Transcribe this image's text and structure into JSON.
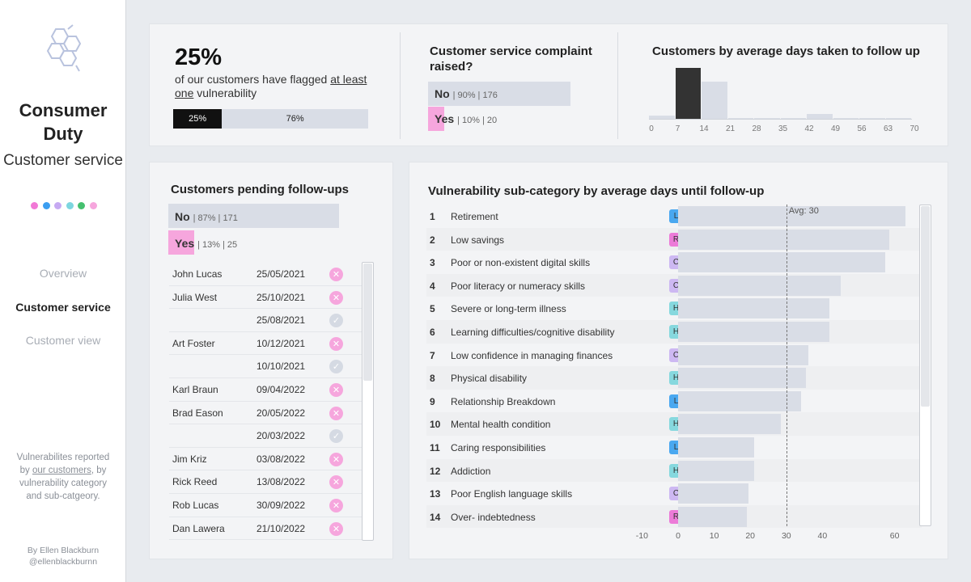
{
  "sidebar": {
    "title": "Consumer Duty",
    "subtitle": "Customer service",
    "dot_colors": [
      "#f179d6",
      "#3b9ef0",
      "#c6a9f2",
      "#7dd6df",
      "#45c06f",
      "#f6a6dd"
    ],
    "nav": [
      {
        "label": "Overview",
        "active": false
      },
      {
        "label": "Customer service",
        "active": true
      },
      {
        "label": "Customer view",
        "active": false
      }
    ],
    "description_pre": "Vulnerabilites reported by ",
    "description_link": "our customers",
    "description_post": ", by vulnerability category and sub-catgeory.",
    "author_line1": "By Ellen Blackburn",
    "author_line2": "@ellenblackburnn"
  },
  "kpi": {
    "big_value": "25%",
    "text_pre": "of our customers have flagged ",
    "text_link": "at least one",
    "text_post": " vulnerability",
    "bar_left_label": "25%",
    "bar_right_label": "76%",
    "bar_left_fraction": 0.25
  },
  "complaint": {
    "title": "Customer service complaint raised?",
    "rows": [
      {
        "label": "No",
        "meta": "| 90% | 176",
        "fraction": 0.9,
        "color": "#d9dde6"
      },
      {
        "label": "Yes",
        "meta": "| 10% | 20",
        "fraction": 0.1,
        "color": "#f6a6dd"
      }
    ]
  },
  "histogram": {
    "title": "Customers by average days taken to follow up",
    "ticks": [
      "0",
      "7",
      "14",
      "21",
      "28",
      "35",
      "42",
      "49",
      "56",
      "63",
      "70"
    ]
  },
  "pending": {
    "title": "Customers pending follow-ups",
    "rows": [
      {
        "label": "No",
        "meta": "| 87% | 171",
        "fraction": 0.87,
        "color": "#d9dde6"
      },
      {
        "label": "Yes",
        "meta": "| 13% | 25",
        "fraction": 0.13,
        "color": "#f6a6dd"
      }
    ],
    "table": [
      {
        "name": "John Lucas",
        "date": "25/05/2021",
        "status": "x"
      },
      {
        "name": "Julia West",
        "date": "25/10/2021",
        "status": "x"
      },
      {
        "name": "",
        "date": "25/08/2021",
        "status": "check"
      },
      {
        "name": "Art Foster",
        "date": "10/12/2021",
        "status": "x"
      },
      {
        "name": "",
        "date": "10/10/2021",
        "status": "check"
      },
      {
        "name": "Karl Braun",
        "date": "09/04/2022",
        "status": "x"
      },
      {
        "name": "Brad Eason",
        "date": "20/05/2022",
        "status": "x"
      },
      {
        "name": "",
        "date": "20/03/2022",
        "status": "check"
      },
      {
        "name": "Jim Kriz",
        "date": "03/08/2022",
        "status": "x"
      },
      {
        "name": "Rick Reed",
        "date": "13/08/2022",
        "status": "x"
      },
      {
        "name": "Rob Lucas",
        "date": "30/09/2022",
        "status": "x"
      },
      {
        "name": "Dan Lawera",
        "date": "21/10/2022",
        "status": "x"
      }
    ]
  },
  "chart_data": [
    {
      "type": "bar",
      "title": "Customers by average days taken to follow up",
      "xlabel": "",
      "ylabel": "",
      "x_ticks": [
        0,
        7,
        14,
        21,
        28,
        35,
        42,
        49,
        56,
        63,
        70
      ],
      "bin_width": 3.5,
      "bins_start": [
        0,
        3.5,
        7,
        10.5,
        14,
        17.5,
        21,
        24.5,
        28,
        31.5,
        35,
        38.5,
        42,
        45.5,
        49,
        52.5,
        56,
        59.5,
        63,
        66.5
      ],
      "values": [
        3,
        0,
        44,
        0,
        32,
        0,
        1,
        0,
        1,
        0,
        1,
        0,
        4,
        0,
        1,
        0,
        1,
        0,
        1,
        0
      ],
      "highlight_bin": 7,
      "ylim": [
        0,
        46
      ]
    },
    {
      "type": "bar",
      "orientation": "horizontal",
      "title": "Vulnerability sub-category by average days until follow-up",
      "categories": [
        "Retirement",
        "Low savings",
        "Poor or non-existent digital skills",
        "Poor literacy or numeracy skills",
        "Severe or long-term illness",
        "Learning difficulties/cognitive disability",
        "Low confidence in managing finances",
        "Physical disability",
        "Relationship Breakdown",
        "Mental health condition",
        "Caring responsibilities",
        "Addiction",
        "Poor English language skills",
        "Over- indebtedness"
      ],
      "ranks": [
        "1",
        "2",
        "3",
        "4",
        "5",
        "6",
        "7",
        "8",
        "9",
        "10",
        "11",
        "12",
        "13",
        "14"
      ],
      "badges": [
        "L",
        "R",
        "C",
        "C",
        "H",
        "H",
        "C",
        "H",
        "L",
        "H",
        "L",
        "H",
        "C",
        "R"
      ],
      "values": [
        63,
        58.5,
        57.5,
        45,
        42,
        42,
        36,
        35.5,
        34,
        28.5,
        21,
        21,
        19.5,
        19
      ],
      "average": 30,
      "average_label": "Avg: 30",
      "x_ticks": [
        "-10",
        "0",
        "10",
        "20",
        "30",
        "40",
        "60"
      ],
      "x_tick_values": [
        -10,
        0,
        10,
        20,
        30,
        40,
        60
      ]
    }
  ],
  "subcat": {
    "title": "Vulnerability sub-category by average days until follow-up",
    "badge_colors": {
      "L": "#4aa8f0",
      "R": "#ec7bd8",
      "C": "#cdb8f2",
      "H": "#86d8de"
    }
  }
}
